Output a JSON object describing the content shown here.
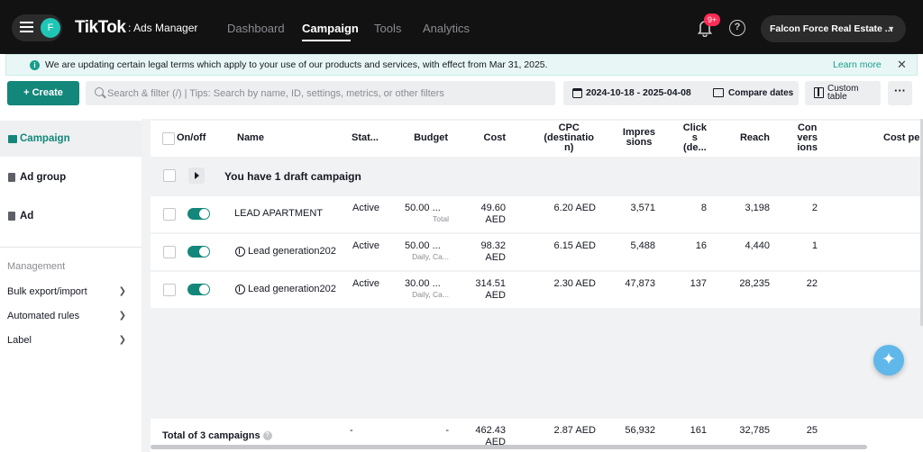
{
  "topbar": {
    "avatar_letter": "F",
    "logo": "TikTok",
    "logo_sub": ": Ads Manager",
    "nav": [
      "Dashboard",
      "Campaign",
      "Tools",
      "Analytics"
    ],
    "active_nav": "Campaign",
    "notification_badge": "9+",
    "help_label": "?",
    "account_name": "Falcon Force Real Estate ..."
  },
  "notice": {
    "icon": "info-icon",
    "text": "We are updating certain legal terms which apply to your use of our products and services, with effect from Mar 31, 2025.",
    "link": "Learn more",
    "close": "✕"
  },
  "toolbar": {
    "create_label": "Create",
    "search_placeholder": "Search & filter (/) | Tips: Search by name, ID, settings, metrics, or other filters",
    "date_range": "2024-10-18 - 2025-04-08",
    "compare_label": "Compare dates",
    "custom_table_label": "Custom table",
    "more_label": "···"
  },
  "sidebar": {
    "levels": [
      "Campaign",
      "Ad group",
      "Ad"
    ],
    "management_title": "Management",
    "management_items": [
      "Bulk export/import",
      "Automated rules",
      "Label"
    ]
  },
  "table": {
    "headers": {
      "onoff": "On/off",
      "name": "Name",
      "status": "Stat...",
      "budget": "Budget",
      "cost": "Cost",
      "cpc": "CPC\n(destinatio\nn)",
      "impressions": "Impres\nsions",
      "clicks": "Click\ns\n(de...",
      "reach": "Reach",
      "conversions": "Con\nvers\nions",
      "cost_per": "Cost per"
    },
    "draft_text": "You have 1 draft campaign",
    "rows": [
      {
        "name": "LEAD APARTMENT",
        "status": "Active",
        "budget": "50.00 ...",
        "budget_sub": "Total",
        "cost": "49.60",
        "cost_currency": "AED",
        "cpc": "6.20 AED",
        "impressions": "3,571",
        "clicks": "8",
        "reach": "3,198",
        "conversions": "2"
      },
      {
        "name": "Lead generation202",
        "status": "Active",
        "budget": "50.00 ...",
        "budget_sub": "Daily, Ca...",
        "cost": "98.32",
        "cost_currency": "AED",
        "cpc": "6.15 AED",
        "impressions": "5,488",
        "clicks": "16",
        "reach": "4,440",
        "conversions": "1"
      },
      {
        "name": "Lead generation202",
        "status": "Active",
        "budget": "30.00 ...",
        "budget_sub": "Daily, Ca...",
        "cost": "314.51",
        "cost_currency": "AED",
        "cpc": "2.30 AED",
        "impressions": "47,873",
        "clicks": "137",
        "reach": "28,235",
        "conversions": "22"
      }
    ],
    "totals": {
      "label": "Total of 3 campaigns",
      "status": "-",
      "budget": "-",
      "cost": "462.43",
      "cost_currency": "AED",
      "cpc": "2.87 AED",
      "impressions": "56,932",
      "clicks": "161",
      "reach": "32,785",
      "conversions": "25"
    }
  },
  "colors": {
    "accent": "#13877a",
    "topbar": "#121212",
    "badge": "#fe2c55",
    "notice_bg": "#e8f7f5"
  }
}
